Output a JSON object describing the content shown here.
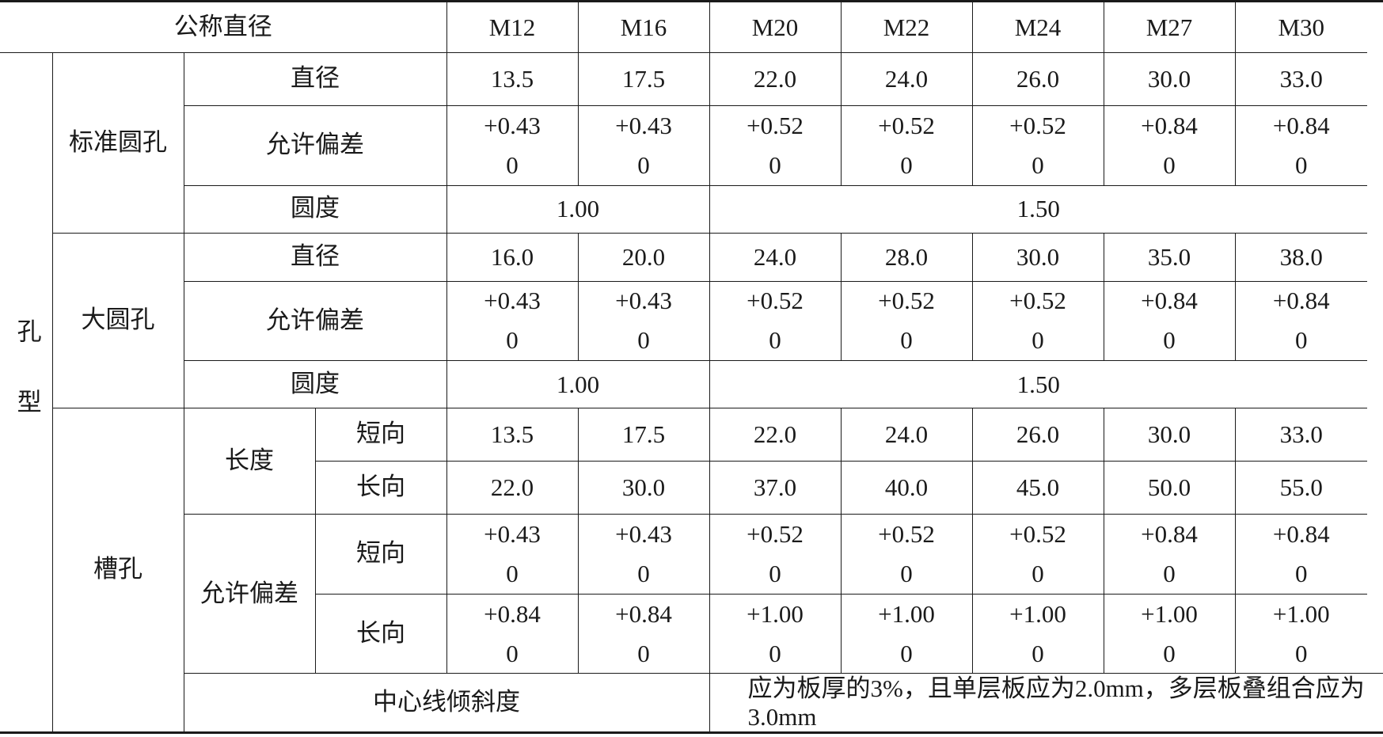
{
  "header": {
    "label": "公称直径",
    "sizes": [
      "M12",
      "M16",
      "M20",
      "M22",
      "M24",
      "M27",
      "M30"
    ]
  },
  "hole_type_label": "孔型",
  "standard": {
    "label": "标准圆孔",
    "diameter_label": "直径",
    "diameter": [
      "13.5",
      "17.5",
      "22.0",
      "24.0",
      "26.0",
      "30.0",
      "33.0"
    ],
    "tolerance_label": "允许偏差",
    "tolerance_upper": [
      "+0.43",
      "+0.43",
      "+0.52",
      "+0.52",
      "+0.52",
      "+0.84",
      "+0.84"
    ],
    "tolerance_lower": [
      "0",
      "0",
      "0",
      "0",
      "0",
      "0",
      "0"
    ],
    "roundness_label": "圆度",
    "roundness_small": "1.00",
    "roundness_large": "1.50"
  },
  "large": {
    "label": "大圆孔",
    "diameter_label": "直径",
    "diameter": [
      "16.0",
      "20.0",
      "24.0",
      "28.0",
      "30.0",
      "35.0",
      "38.0"
    ],
    "tolerance_label": "允许偏差",
    "tolerance_upper": [
      "+0.43",
      "+0.43",
      "+0.52",
      "+0.52",
      "+0.52",
      "+0.84",
      "+0.84"
    ],
    "tolerance_lower": [
      "0",
      "0",
      "0",
      "0",
      "0",
      "0",
      "0"
    ],
    "roundness_label": "圆度",
    "roundness_small": "1.00",
    "roundness_large": "1.50"
  },
  "slot": {
    "label": "槽孔",
    "length_label": "长度",
    "short_label": "短向",
    "long_label": "长向",
    "length_short": [
      "13.5",
      "17.5",
      "22.0",
      "24.0",
      "26.0",
      "30.0",
      "33.0"
    ],
    "length_long": [
      "22.0",
      "30.0",
      "37.0",
      "40.0",
      "45.0",
      "50.0",
      "55.0"
    ],
    "tolerance_label": "允许偏差",
    "tol_short_upper": [
      "+0.43",
      "+0.43",
      "+0.52",
      "+0.52",
      "+0.52",
      "+0.84",
      "+0.84"
    ],
    "tol_short_lower": [
      "0",
      "0",
      "0",
      "0",
      "0",
      "0",
      "0"
    ],
    "tol_long_upper": [
      "+0.84",
      "+0.84",
      "+1.00",
      "+1.00",
      "+1.00",
      "+1.00",
      "+1.00"
    ],
    "tol_long_lower": [
      "0",
      "0",
      "0",
      "0",
      "0",
      "0",
      "0"
    ]
  },
  "centerline": {
    "label": "中心线倾斜度",
    "text": "应为板厚的3%，且单层板应为2.0mm，多层板叠组合应为3.0mm"
  }
}
